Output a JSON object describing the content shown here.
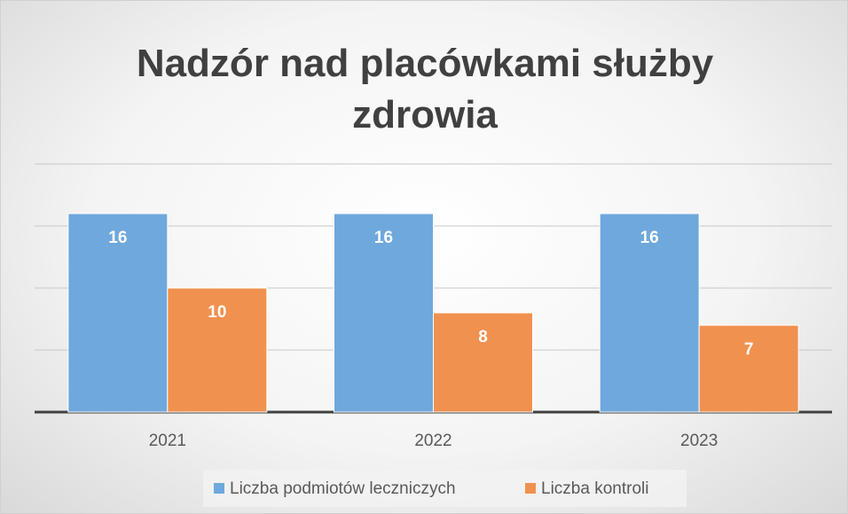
{
  "chart_data": {
    "type": "bar",
    "title": "Nadzór nad placówkami służby zdrowia",
    "categories": [
      "2021",
      "2022",
      "2023"
    ],
    "series": [
      {
        "name": "Liczba podmiotów leczniczych",
        "color": "#6fa8dc",
        "values": [
          16,
          16,
          16
        ]
      },
      {
        "name": "Liczba kontroli",
        "color": "#f0914f",
        "values": [
          10,
          8,
          7
        ]
      }
    ],
    "ylim": [
      0,
      20
    ],
    "yticks": [
      0,
      5,
      10,
      15,
      20
    ],
    "grid": true,
    "legend": "bottom"
  }
}
